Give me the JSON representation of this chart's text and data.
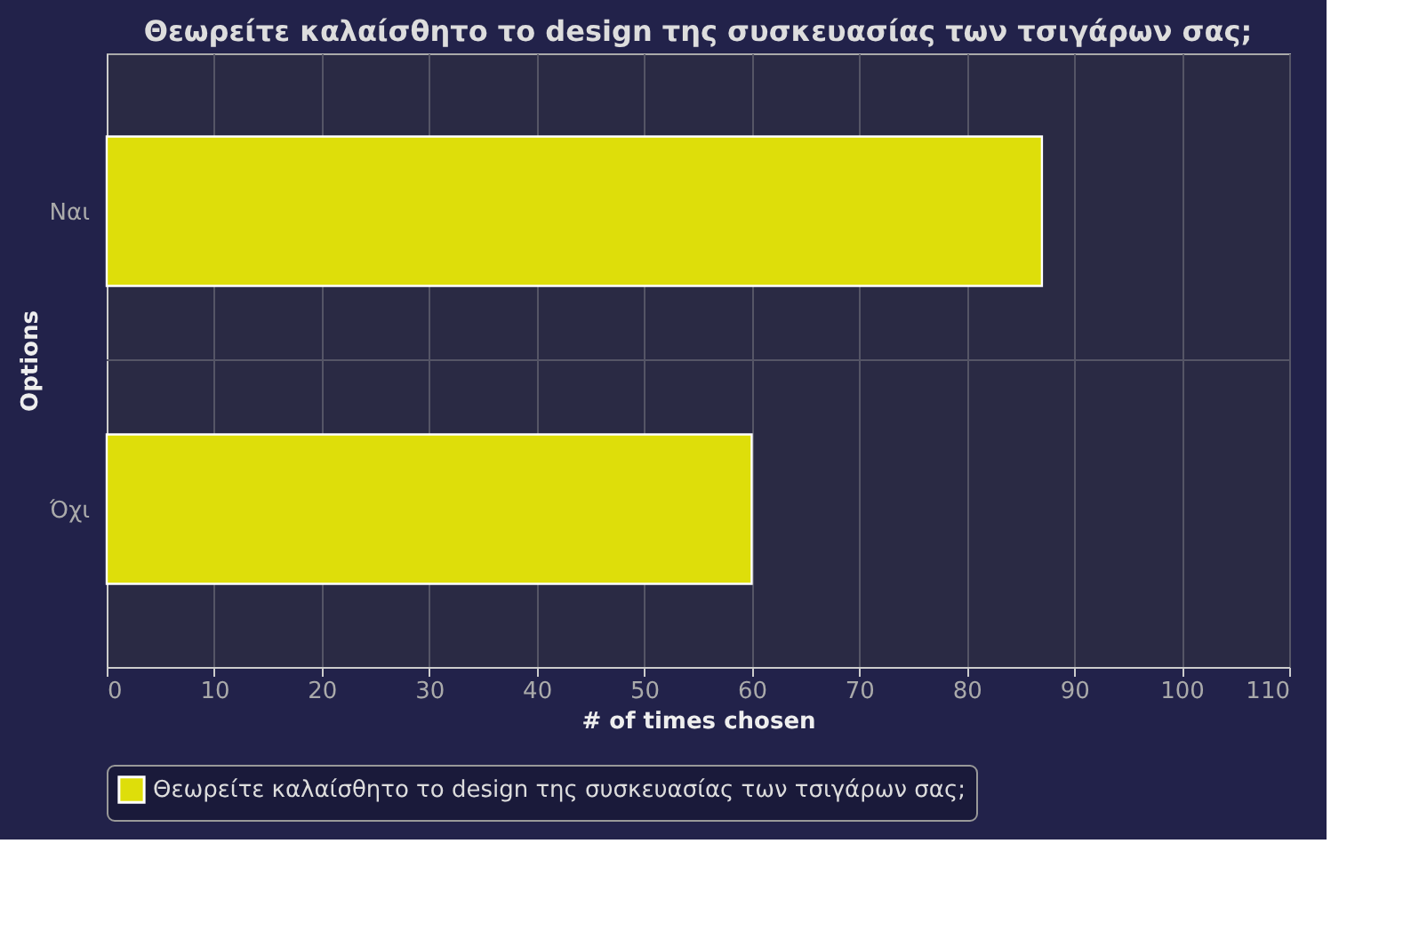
{
  "chart_data": {
    "type": "bar",
    "orientation": "horizontal",
    "title": "Θεωρείτε καλαίσθητο το design της συσκευασίας των τσιγάρων σας;",
    "categories": [
      "Ναι",
      "Όχι"
    ],
    "series": [
      {
        "name": "Θεωρείτε καλαίσθητο το design της συσκευασίας των τσιγάρων σας;",
        "color": "#dede0a",
        "values": [
          87,
          60
        ]
      }
    ],
    "xlabel": "# of times chosen",
    "ylabel": "Options",
    "xlim": [
      0,
      110
    ],
    "xticks": [
      0,
      10,
      20,
      30,
      40,
      50,
      60,
      70,
      80,
      90,
      100,
      110
    ],
    "grid": true,
    "legend": "bottom"
  }
}
